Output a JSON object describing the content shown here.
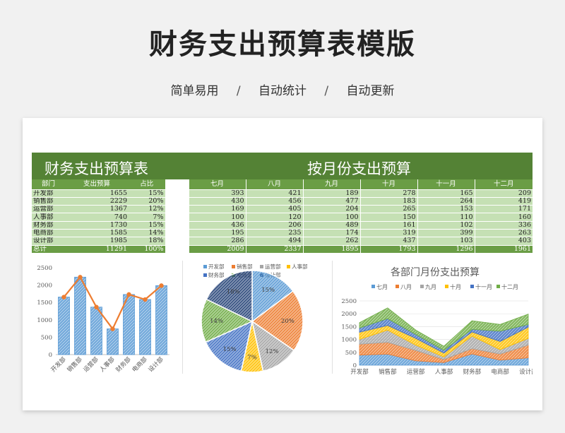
{
  "page": {
    "title": "财务支出预算表模版",
    "subtitle": [
      "简单易用",
      "自动统计",
      "自动更新"
    ],
    "subtitle_sep": "/"
  },
  "banner": {
    "left": "财务支出预算表",
    "right": "按月份支出预算"
  },
  "table": {
    "headers": [
      "部门",
      "支出预算",
      "占比",
      "七月",
      "八月",
      "九月",
      "十月",
      "十一月",
      "十二月"
    ],
    "rows": [
      [
        "开发部",
        "1655",
        "15%",
        "393",
        "421",
        "189",
        "278",
        "165",
        "209"
      ],
      [
        "销售部",
        "2229",
        "20%",
        "430",
        "456",
        "477",
        "183",
        "264",
        "419"
      ],
      [
        "运营部",
        "1367",
        "12%",
        "169",
        "405",
        "204",
        "265",
        "153",
        "171"
      ],
      [
        "人事部",
        "740",
        "7%",
        "100",
        "120",
        "100",
        "150",
        "110",
        "160"
      ],
      [
        "财务部",
        "1730",
        "15%",
        "436",
        "206",
        "489",
        "161",
        "102",
        "336"
      ],
      [
        "电商部",
        "1585",
        "14%",
        "195",
        "235",
        "174",
        "319",
        "399",
        "263"
      ],
      [
        "设计部",
        "1985",
        "18%",
        "286",
        "494",
        "262",
        "437",
        "103",
        "403"
      ]
    ],
    "total": [
      "总计",
      "11291",
      "100%",
      "2009",
      "2337",
      "1895",
      "1793",
      "1296",
      "1961"
    ]
  },
  "colors": {
    "banner": "#548235",
    "header": "#6a9d45",
    "row": "#c5e0b4",
    "bar": "#5b9bd5",
    "line": "#ed7d31",
    "months": [
      "#5b9bd5",
      "#ed7d31",
      "#a5a5a5",
      "#ffc000",
      "#4472c4",
      "#70ad47"
    ]
  },
  "chart_data": [
    {
      "type": "bar",
      "categories": [
        "开发部",
        "销售部",
        "运营部",
        "人事部",
        "财务部",
        "电商部",
        "设计部"
      ],
      "series": [
        {
          "values": [
            1655,
            2229,
            1367,
            740,
            1730,
            1585,
            1985
          ]
        },
        {
          "values": [
            1655,
            2229,
            1367,
            740,
            1730,
            1585,
            1985
          ]
        }
      ],
      "ylim": [
        0,
        2500
      ],
      "yticks": [
        "0",
        "500",
        "1000",
        "1500",
        "2000",
        "2500"
      ],
      "grid": false
    },
    {
      "type": "pie",
      "categories": [
        "开发部",
        "销售部",
        "运营部",
        "人事部",
        "财务部",
        "电商部",
        "设计部"
      ],
      "values": [
        15,
        20,
        12,
        7,
        15,
        14,
        18
      ],
      "labels": [
        "15%",
        "20%",
        "12%",
        "7%",
        "15%",
        "14%",
        "18%"
      ],
      "legend": "top"
    },
    {
      "type": "area",
      "title": "各部门月份支出预算",
      "categories": [
        "开发部",
        "销售部",
        "运营部",
        "人事部",
        "财务部",
        "电商部",
        "设计部"
      ],
      "series": [
        {
          "name": "七月",
          "values": [
            393,
            430,
            169,
            100,
            436,
            195,
            286
          ]
        },
        {
          "name": "八月",
          "values": [
            421,
            456,
            405,
            120,
            206,
            235,
            494
          ]
        },
        {
          "name": "九月",
          "values": [
            189,
            477,
            204,
            100,
            489,
            174,
            262
          ]
        },
        {
          "name": "十月",
          "values": [
            278,
            183,
            265,
            150,
            161,
            319,
            437
          ]
        },
        {
          "name": "十一月",
          "values": [
            165,
            264,
            153,
            110,
            102,
            399,
            103
          ]
        },
        {
          "name": "十二月",
          "values": [
            209,
            419,
            171,
            160,
            336,
            263,
            403
          ]
        }
      ],
      "ylim": [
        0,
        2500
      ],
      "yticks": [
        "0",
        "500",
        "1000",
        "1500",
        "2000",
        "2500"
      ],
      "legend": "top",
      "stacked": true
    }
  ]
}
